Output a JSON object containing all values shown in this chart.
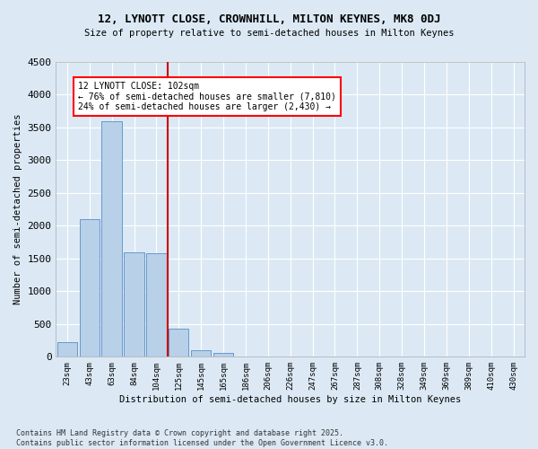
{
  "title": "12, LYNOTT CLOSE, CROWNHILL, MILTON KEYNES, MK8 0DJ",
  "subtitle": "Size of property relative to semi-detached houses in Milton Keynes",
  "xlabel": "Distribution of semi-detached houses by size in Milton Keynes",
  "ylabel": "Number of semi-detached properties",
  "footnote": "Contains HM Land Registry data © Crown copyright and database right 2025.\nContains public sector information licensed under the Open Government Licence v3.0.",
  "bar_color": "#b8d0e8",
  "bar_edge_color": "#6699cc",
  "background_color": "#dce9f5",
  "grid_color": "#ffffff",
  "annotation_line1": "12 LYNOTT CLOSE: 102sqm",
  "annotation_line2": "← 76% of semi-detached houses are smaller (7,810)",
  "annotation_line3": "24% of semi-detached houses are larger (2,430) →",
  "vline_color": "#cc0000",
  "categories": [
    "23sqm",
    "43sqm",
    "63sqm",
    "84sqm",
    "104sqm",
    "125sqm",
    "145sqm",
    "165sqm",
    "186sqm",
    "206sqm",
    "226sqm",
    "247sqm",
    "267sqm",
    "287sqm",
    "308sqm",
    "328sqm",
    "349sqm",
    "369sqm",
    "389sqm",
    "410sqm",
    "430sqm"
  ],
  "values": [
    230,
    2100,
    3600,
    1600,
    1580,
    430,
    100,
    60,
    0,
    0,
    0,
    0,
    0,
    0,
    0,
    0,
    0,
    0,
    0,
    0,
    0
  ],
  "ylim": [
    0,
    4500
  ],
  "yticks": [
    0,
    500,
    1000,
    1500,
    2000,
    2500,
    3000,
    3500,
    4000,
    4500
  ],
  "vline_index": 4
}
